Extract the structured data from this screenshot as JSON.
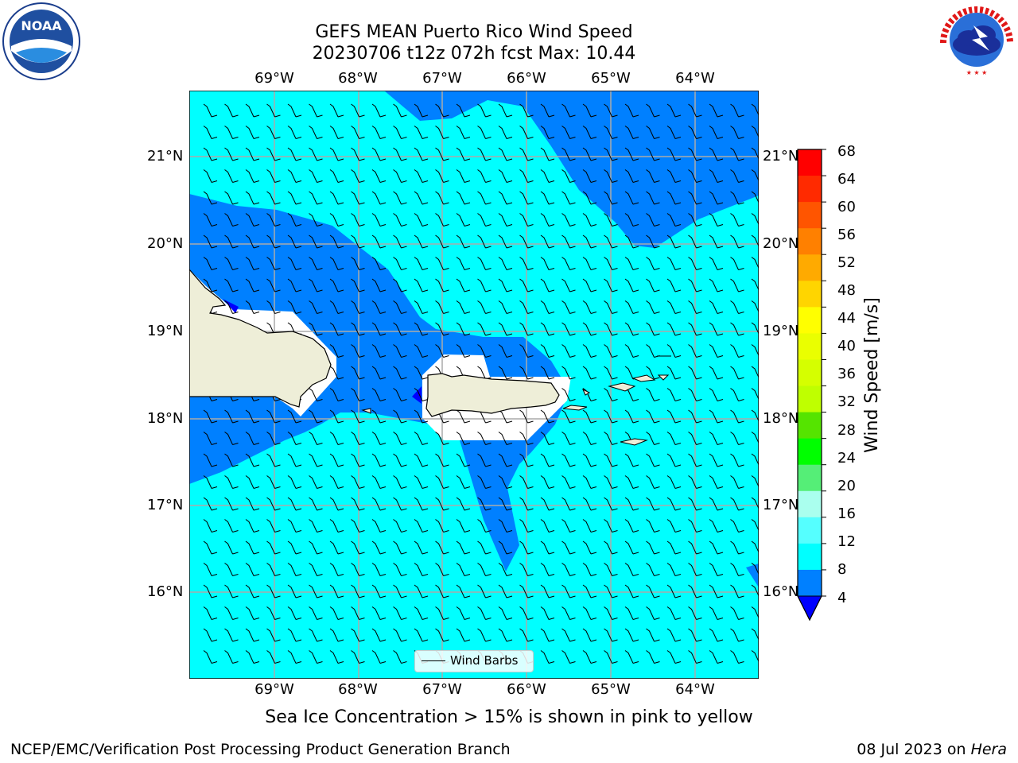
{
  "title_line1": "GEFS MEAN Puerto Rico Wind Speed",
  "title_line2": "20230706 t12z 072h fcst   Max: 10.44",
  "lon_labels": [
    "69°W",
    "68°W",
    "67°W",
    "66°W",
    "65°W",
    "64°W"
  ],
  "lat_labels": [
    "21°N",
    "20°N",
    "19°N",
    "18°N",
    "17°N",
    "16°N"
  ],
  "colorbar": {
    "label": "Wind Speed [m/s]",
    "ticks": [
      "68",
      "64",
      "60",
      "56",
      "52",
      "48",
      "44",
      "40",
      "36",
      "32",
      "28",
      "24",
      "20",
      "16",
      "12",
      "8",
      "4"
    ],
    "colors": [
      "#ff0000",
      "#ff2a00",
      "#ff5500",
      "#ff8000",
      "#ffaa00",
      "#ffd500",
      "#ffff00",
      "#eaff00",
      "#d5ff00",
      "#bfff00",
      "#55e400",
      "#00ff00",
      "#55ee77",
      "#aaffee",
      "#55ffff",
      "#00ffff",
      "#0080ff"
    ],
    "under_color": "#0000ff"
  },
  "legend_label": "Wind Barbs",
  "caption": "Sea Ice Concentration > 15% is shown in pink to yellow",
  "footer_left": "NCEP/EMC/Verification Post Processing Product Generation Branch",
  "footer_right_date": "08 Jul 2023 on ",
  "footer_right_machine": "Hera",
  "logos": {
    "noaa_text": "NOAA",
    "nws_text": "NATIONAL WEATHER SERVICE"
  },
  "map_colors": {
    "ocean_light": "#00ffff",
    "ocean_mid": "#0080ff",
    "ocean_min": "#0000ff",
    "land": "#eeeed8"
  }
}
